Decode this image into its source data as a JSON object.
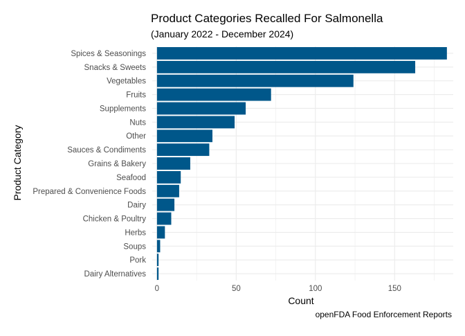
{
  "chart_data": {
    "type": "bar",
    "orientation": "horizontal",
    "title": "Product Categories Recalled For Salmonella",
    "subtitle": "(January 2022 - December 2024)",
    "xlabel": "Count",
    "ylabel": "Product Category",
    "caption": "openFDA Food Enforcement Reports",
    "categories": [
      "Spices & Seasonings",
      "Snacks & Sweets",
      "Vegetables",
      "Fruits",
      "Supplements",
      "Nuts",
      "Other",
      "Sauces & Condiments",
      "Grains & Bakery",
      "Seafood",
      "Prepared & Convenience Foods",
      "Dairy",
      "Chicken & Poultry",
      "Herbs",
      "Soups",
      "Pork",
      "Dairy Alternatives"
    ],
    "values": [
      183,
      163,
      124,
      72,
      56,
      49,
      35,
      33,
      21,
      15,
      14,
      11,
      9,
      5,
      2,
      1,
      1
    ],
    "xlim": [
      -3,
      187
    ],
    "xticks": [
      0,
      50,
      100,
      150
    ],
    "grid": true,
    "bar_color": "#00578a",
    "grid_color": "#ebebeb",
    "legend": "none"
  }
}
